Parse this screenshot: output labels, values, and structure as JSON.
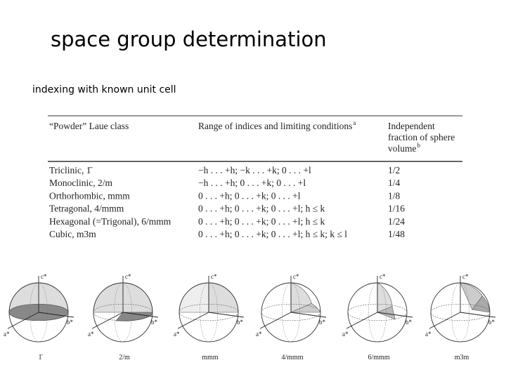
{
  "header": {
    "title": "space group determination",
    "subtitle": "indexing with known unit cell"
  },
  "table": {
    "columns": [
      {
        "text": "“Powder” Laue class"
      },
      {
        "text": "Range of indices and limiting conditions",
        "note": "a"
      },
      {
        "lines": [
          "Independent",
          "fraction of sphere",
          "volume"
        ],
        "note": "b"
      }
    ],
    "rows": [
      [
        "Triclinic, 1̄",
        "−h . . . +h; −k . . . +k; 0 . . . +l",
        "1/2"
      ],
      [
        "Monoclinic, 2/m",
        "−h . . . +h; 0 . . . +k; 0 . . . +l",
        "1/4"
      ],
      [
        "Orthorhombic, mmm",
        "0 . . . +h; 0 . . . +k; 0 . . . +l",
        "1/8"
      ],
      [
        "Tetragonal, 4/mmm",
        "0 . . . +h; 0 . . . +k; 0 . . . +l; h ≤ k",
        "1/16"
      ],
      [
        "Hexagonal (=Trigonal), 6/mmm",
        "0 . . . +h; 0 . . . +k; 0 . . . +l; h ≤ k",
        "1/24"
      ],
      [
        "Cubic, m3m",
        "0 . . . +h; 0 . . . +k; 0 . . . +l; h ≤ k; k ≤ l",
        "1/48"
      ]
    ]
  },
  "axes": {
    "a": "a*",
    "b": "b*",
    "c": "c*"
  },
  "spheres": [
    "1̄",
    "2/m",
    "mmm",
    "4/mmm",
    "6/mmm",
    "m3m"
  ]
}
